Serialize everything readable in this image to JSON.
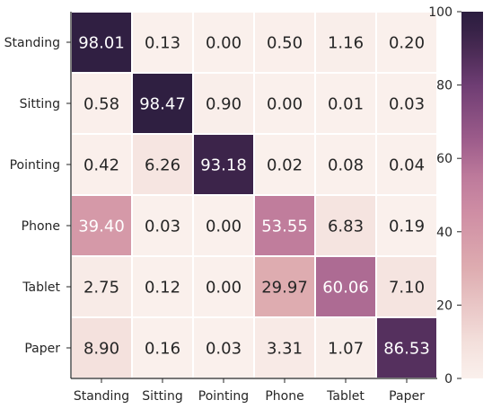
{
  "chart_data": {
    "type": "heatmap",
    "title": "",
    "xlabel": "",
    "ylabel": "",
    "x_categories": [
      "Standing",
      "Sitting",
      "Pointing",
      "Phone",
      "Tablet",
      "Paper"
    ],
    "y_categories": [
      "Standing",
      "Sitting",
      "Pointing",
      "Phone",
      "Tablet",
      "Paper"
    ],
    "values": [
      [
        "98.01",
        "0.13",
        "0.00",
        "0.50",
        "1.16",
        "0.20"
      ],
      [
        "0.58",
        "98.47",
        "0.90",
        "0.00",
        "0.01",
        "0.03"
      ],
      [
        "0.42",
        "6.26",
        "93.18",
        "0.02",
        "0.08",
        "0.04"
      ],
      [
        "39.40",
        "0.03",
        "0.00",
        "53.55",
        "6.83",
        "0.19"
      ],
      [
        "2.75",
        "0.12",
        "0.00",
        "29.97",
        "60.06",
        "7.10"
      ],
      [
        "8.90",
        "0.16",
        "0.03",
        "3.31",
        "1.07",
        "86.53"
      ]
    ],
    "colorbar": {
      "range": [
        0,
        100
      ],
      "ticks": [
        "0",
        "20",
        "40",
        "60",
        "80",
        "100"
      ],
      "low_color": "#faf0ec",
      "high_color": "#2b1d3f"
    },
    "grid": false,
    "legend": "colorbar-right"
  }
}
